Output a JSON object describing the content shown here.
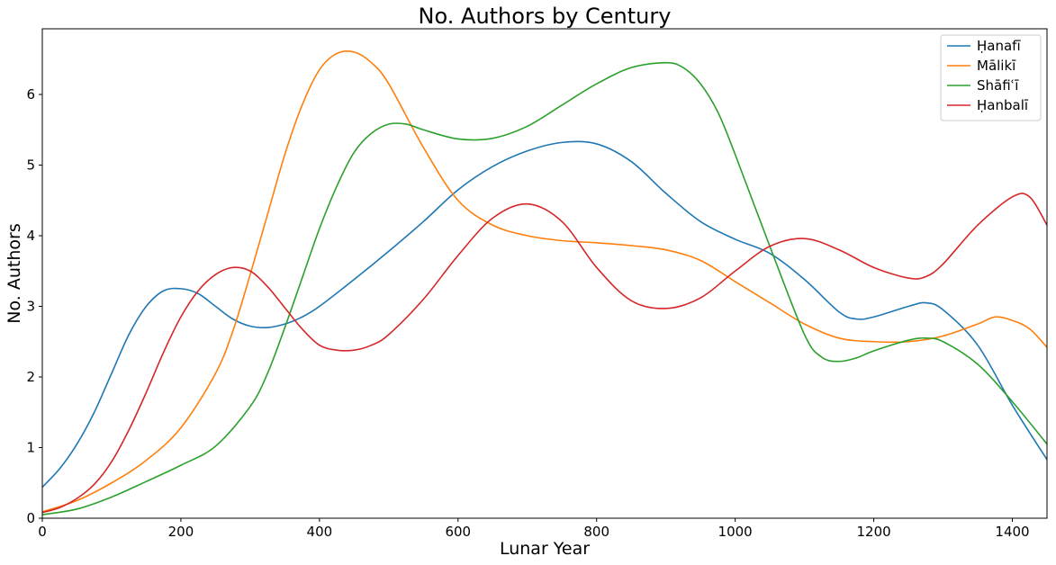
{
  "chart_data": {
    "type": "line",
    "title": "No. Authors by Century",
    "xlabel": "Lunar Year",
    "ylabel": "No. Authors",
    "xlim": [
      0,
      1450
    ],
    "ylim": [
      0,
      6.93
    ],
    "xticks": [
      0,
      200,
      400,
      600,
      800,
      1000,
      1200,
      1400
    ],
    "yticks": [
      0,
      1,
      2,
      3,
      4,
      5,
      6
    ],
    "grid": false,
    "legend_position": "top-right",
    "series": [
      {
        "name": "Ḥanafī",
        "color": "#1f77b4",
        "x": [
          0,
          25,
          50,
          75,
          100,
          125,
          150,
          175,
          200,
          225,
          250,
          275,
          300,
          325,
          350,
          375,
          400,
          450,
          500,
          550,
          600,
          650,
          700,
          750,
          800,
          850,
          900,
          950,
          1000,
          1050,
          1100,
          1150,
          1175,
          1200,
          1250,
          1275,
          1300,
          1350,
          1400,
          1450
        ],
        "y": [
          0.44,
          0.7,
          1.05,
          1.5,
          2.05,
          2.6,
          3.0,
          3.22,
          3.25,
          3.18,
          3.0,
          2.82,
          2.72,
          2.7,
          2.75,
          2.85,
          3.0,
          3.38,
          3.78,
          4.2,
          4.65,
          4.98,
          5.2,
          5.32,
          5.3,
          5.05,
          4.6,
          4.2,
          3.95,
          3.75,
          3.38,
          2.92,
          2.82,
          2.85,
          3.0,
          3.05,
          2.95,
          2.45,
          1.6,
          0.83
        ]
      },
      {
        "name": "Mālikī",
        "color": "#ff7f0e",
        "x": [
          0,
          50,
          100,
          150,
          200,
          250,
          275,
          300,
          325,
          350,
          375,
          400,
          425,
          450,
          475,
          500,
          550,
          600,
          650,
          700,
          750,
          800,
          850,
          900,
          950,
          1000,
          1050,
          1100,
          1150,
          1200,
          1250,
          1300,
          1350,
          1375,
          1400,
          1425,
          1450
        ],
        "y": [
          0.09,
          0.25,
          0.5,
          0.82,
          1.28,
          2.05,
          2.65,
          3.45,
          4.3,
          5.15,
          5.85,
          6.35,
          6.58,
          6.6,
          6.45,
          6.15,
          5.25,
          4.5,
          4.15,
          4.0,
          3.93,
          3.9,
          3.86,
          3.8,
          3.65,
          3.35,
          3.05,
          2.75,
          2.55,
          2.5,
          2.5,
          2.58,
          2.75,
          2.85,
          2.8,
          2.68,
          2.42
        ]
      },
      {
        "name": "Shāfiʿī",
        "color": "#2ca02c",
        "x": [
          0,
          50,
          100,
          150,
          200,
          250,
          300,
          325,
          350,
          375,
          400,
          425,
          450,
          475,
          500,
          525,
          550,
          600,
          650,
          700,
          750,
          800,
          850,
          900,
          925,
          950,
          975,
          1000,
          1050,
          1100,
          1125,
          1150,
          1175,
          1200,
          1250,
          1275,
          1300,
          1350,
          1400,
          1450
        ],
        "y": [
          0.05,
          0.13,
          0.3,
          0.52,
          0.75,
          1.02,
          1.58,
          2.05,
          2.7,
          3.4,
          4.1,
          4.7,
          5.18,
          5.45,
          5.58,
          5.58,
          5.5,
          5.37,
          5.38,
          5.55,
          5.85,
          6.15,
          6.38,
          6.45,
          6.38,
          6.15,
          5.75,
          5.15,
          3.85,
          2.6,
          2.28,
          2.22,
          2.27,
          2.37,
          2.52,
          2.55,
          2.5,
          2.18,
          1.65,
          1.05
        ]
      },
      {
        "name": "Ḥanbalī",
        "color": "#d62728",
        "x": [
          0,
          25,
          50,
          75,
          100,
          125,
          150,
          175,
          200,
          225,
          250,
          275,
          300,
          325,
          350,
          375,
          400,
          425,
          450,
          475,
          500,
          550,
          600,
          650,
          700,
          750,
          800,
          850,
          900,
          950,
          1000,
          1050,
          1100,
          1150,
          1200,
          1250,
          1275,
          1300,
          1350,
          1400,
          1425,
          1450
        ],
        "y": [
          0.08,
          0.15,
          0.28,
          0.48,
          0.8,
          1.25,
          1.78,
          2.35,
          2.85,
          3.22,
          3.45,
          3.55,
          3.5,
          3.28,
          2.98,
          2.68,
          2.45,
          2.38,
          2.38,
          2.45,
          2.6,
          3.1,
          3.72,
          4.25,
          4.45,
          4.2,
          3.55,
          3.08,
          2.97,
          3.12,
          3.5,
          3.85,
          3.96,
          3.8,
          3.55,
          3.4,
          3.42,
          3.6,
          4.15,
          4.55,
          4.55,
          4.15
        ]
      }
    ]
  }
}
